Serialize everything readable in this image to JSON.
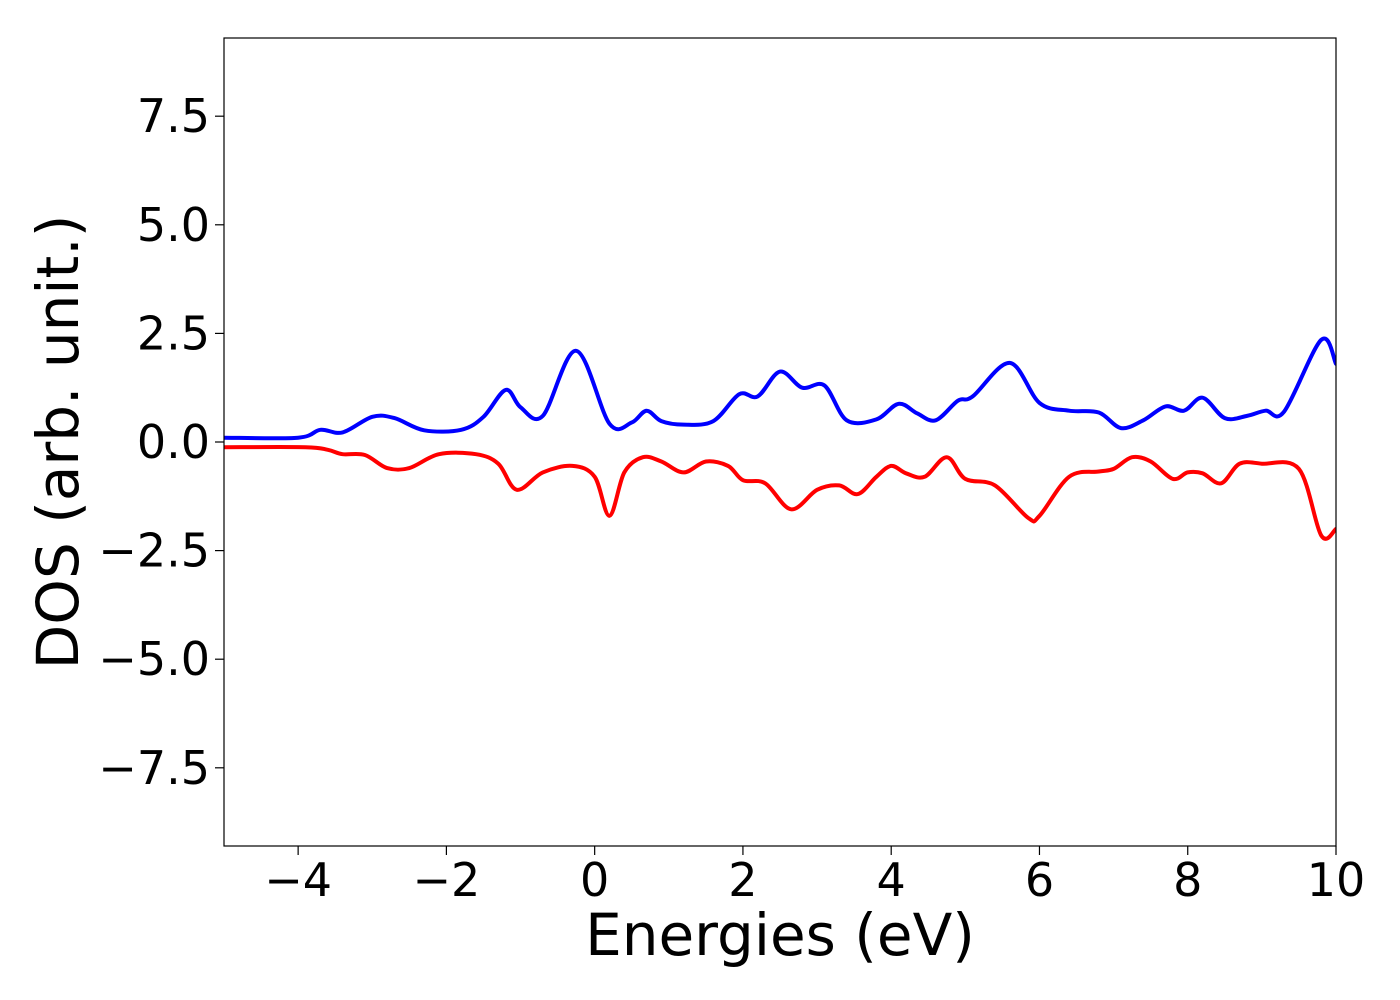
{
  "chart_data": {
    "type": "line",
    "title": "",
    "xlabel": "Energies (eV)",
    "ylabel": "DOS (arb. unit.)",
    "xlim": [
      -5,
      10
    ],
    "ylim": [
      -9.3,
      9.3
    ],
    "xticks": [
      -4,
      -2,
      0,
      2,
      4,
      6,
      8,
      10
    ],
    "xtick_labels": [
      "−4",
      "−2",
      "0",
      "2",
      "4",
      "6",
      "8",
      "10"
    ],
    "yticks": [
      7.5,
      5.0,
      2.5,
      0.0,
      -2.5,
      -5.0,
      -7.5
    ],
    "ytick_labels": [
      "7.5",
      "5.0",
      "2.5",
      "0.0",
      "−2.5",
      "−5.0",
      "−7.5"
    ],
    "grid": false,
    "legend": "none",
    "series": [
      {
        "color": "#0000ff",
        "x": [
          -5.0,
          -4.0,
          -3.7,
          -3.4,
          -3.0,
          -2.7,
          -2.3,
          -1.8,
          -1.5,
          -1.2,
          -1.0,
          -0.7,
          -0.25,
          0.2,
          0.5,
          0.7,
          0.9,
          1.2,
          1.6,
          1.95,
          2.2,
          2.5,
          2.8,
          3.1,
          3.4,
          3.8,
          4.1,
          4.35,
          4.6,
          4.9,
          5.1,
          5.6,
          6.0,
          6.4,
          6.8,
          7.1,
          7.4,
          7.7,
          7.95,
          8.2,
          8.5,
          8.8,
          9.05,
          9.3,
          9.8,
          10.0
        ],
        "values": [
          0.1,
          0.1,
          0.28,
          0.22,
          0.58,
          0.55,
          0.27,
          0.28,
          0.58,
          1.2,
          0.8,
          0.6,
          2.1,
          0.42,
          0.45,
          0.72,
          0.48,
          0.4,
          0.48,
          1.1,
          1.05,
          1.62,
          1.25,
          1.3,
          0.5,
          0.52,
          0.88,
          0.66,
          0.5,
          0.95,
          1.05,
          1.82,
          0.9,
          0.72,
          0.68,
          0.32,
          0.5,
          0.82,
          0.72,
          1.02,
          0.55,
          0.6,
          0.72,
          0.7,
          2.35,
          1.8
        ]
      },
      {
        "color": "#ff0000",
        "x": [
          -5.0,
          -3.9,
          -3.6,
          -3.4,
          -3.1,
          -2.8,
          -2.5,
          -2.1,
          -1.6,
          -1.3,
          -1.05,
          -0.7,
          -0.3,
          0.0,
          0.2,
          0.4,
          0.65,
          0.9,
          1.2,
          1.5,
          1.8,
          2.0,
          2.3,
          2.65,
          3.0,
          3.3,
          3.55,
          3.8,
          4.0,
          4.2,
          4.45,
          4.75,
          5.0,
          5.4,
          5.85,
          6.0,
          6.4,
          6.8,
          7.0,
          7.25,
          7.5,
          7.8,
          8.0,
          8.2,
          8.45,
          8.7,
          9.0,
          9.5,
          9.8,
          10.0
        ],
        "values": [
          -0.12,
          -0.12,
          -0.18,
          -0.28,
          -0.3,
          -0.6,
          -0.6,
          -0.28,
          -0.28,
          -0.5,
          -1.1,
          -0.7,
          -0.55,
          -0.8,
          -1.7,
          -0.7,
          -0.35,
          -0.45,
          -0.7,
          -0.45,
          -0.55,
          -0.88,
          -0.95,
          -1.55,
          -1.1,
          -1.0,
          -1.2,
          -0.8,
          -0.55,
          -0.72,
          -0.8,
          -0.35,
          -0.85,
          -1.0,
          -1.75,
          -1.7,
          -0.8,
          -0.68,
          -0.62,
          -0.35,
          -0.45,
          -0.85,
          -0.7,
          -0.72,
          -0.95,
          -0.5,
          -0.5,
          -0.62,
          -2.15,
          -2.0
        ]
      }
    ]
  }
}
